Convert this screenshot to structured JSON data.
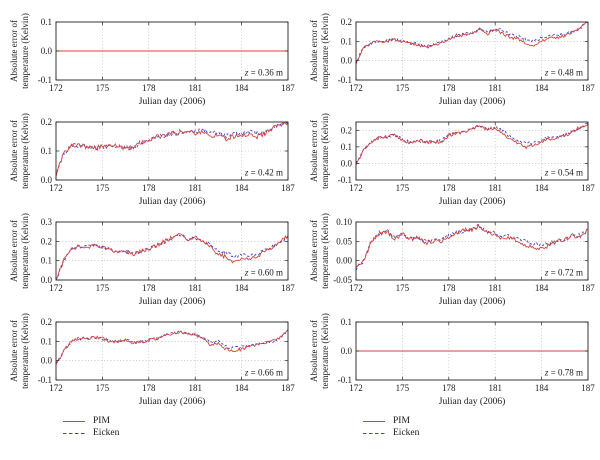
{
  "figure": {
    "background": "#ffffff",
    "xlabel": "Julian day (2006)",
    "ylabel": [
      "Absolute error of",
      "temperature (Kelvin)"
    ],
    "colors": {
      "pim": "#d8433b",
      "eicken": "#4340c6",
      "grid": "#aaaaaa",
      "axis": "#222222",
      "text": "#1a1a1a"
    },
    "legend": [
      {
        "name": "PIM",
        "style": "solid"
      },
      {
        "name": "Eicken",
        "style": "dashed"
      }
    ]
  },
  "chart_data": [
    {
      "type": "line",
      "z_label": "z = 0.36 m",
      "xlabel": "Julian day (2006)",
      "ylabel": "Absolute error of temperature (Kelvin)",
      "xlim": [
        172,
        187
      ],
      "xticks": [
        172,
        175,
        178,
        181,
        184,
        187
      ],
      "ylim": [
        -0.1,
        0.1
      ],
      "yticks": [
        -0.1,
        0.0,
        0.1
      ],
      "ytick_labels": [
        "-0.1",
        "0.0",
        "0.1"
      ],
      "x_start": 172,
      "x_step": 15,
      "noise": 0,
      "series": [
        {
          "name": "PIM",
          "values": [
            0,
            0
          ]
        },
        {
          "name": "Eicken",
          "values": [
            0,
            0
          ]
        }
      ]
    },
    {
      "type": "line",
      "z_label": "z = 0.48 m",
      "xlabel": "Julian day (2006)",
      "ylabel": "Absolute error of temperature (Kelvin)",
      "xlim": [
        172,
        187
      ],
      "xticks": [
        172,
        175,
        178,
        181,
        184,
        187
      ],
      "ylim": [
        -0.1,
        0.2
      ],
      "yticks": [
        -0.1,
        0.0,
        0.1,
        0.2
      ],
      "ytick_labels": [
        "-0.1",
        "0.0",
        "0.1",
        "0.2"
      ],
      "x_start": 172,
      "x_step": 0.5,
      "noise": 0.008,
      "series": [
        {
          "name": "PIM",
          "values": [
            -0.01,
            0.07,
            0.09,
            0.1,
            0.1,
            0.11,
            0.1,
            0.09,
            0.08,
            0.07,
            0.08,
            0.09,
            0.11,
            0.13,
            0.13,
            0.14,
            0.16,
            0.14,
            0.16,
            0.14,
            0.12,
            0.11,
            0.09,
            0.08,
            0.1,
            0.12,
            0.12,
            0.13,
            0.15,
            0.17,
            0.2
          ]
        },
        {
          "name": "Eicken",
          "values": [
            -0.01,
            0.07,
            0.09,
            0.1,
            0.105,
            0.11,
            0.1,
            0.09,
            0.085,
            0.075,
            0.08,
            0.095,
            0.115,
            0.13,
            0.135,
            0.145,
            0.165,
            0.15,
            0.165,
            0.155,
            0.135,
            0.125,
            0.11,
            0.1,
            0.115,
            0.13,
            0.13,
            0.135,
            0.15,
            0.17,
            0.2
          ]
        }
      ]
    },
    {
      "type": "line",
      "z_label": "z = 0.42 m",
      "xlabel": "Julian day (2006)",
      "ylabel": "Absolute error of temperature (Kelvin)",
      "xlim": [
        172,
        187
      ],
      "xticks": [
        172,
        175,
        178,
        181,
        184,
        187
      ],
      "ylim": [
        0.0,
        0.2
      ],
      "yticks": [
        0.0,
        0.1,
        0.2
      ],
      "ytick_labels": [
        "0.0",
        "0.1",
        "0.2"
      ],
      "x_start": 172,
      "x_step": 0.5,
      "noise": 0.008,
      "series": [
        {
          "name": "PIM",
          "values": [
            0.02,
            0.09,
            0.12,
            0.12,
            0.115,
            0.11,
            0.115,
            0.12,
            0.115,
            0.11,
            0.11,
            0.13,
            0.14,
            0.15,
            0.15,
            0.16,
            0.16,
            0.17,
            0.16,
            0.17,
            0.15,
            0.16,
            0.14,
            0.15,
            0.15,
            0.16,
            0.15,
            0.16,
            0.18,
            0.19,
            0.2
          ]
        },
        {
          "name": "Eicken",
          "values": [
            0.02,
            0.09,
            0.12,
            0.12,
            0.115,
            0.11,
            0.115,
            0.12,
            0.115,
            0.11,
            0.11,
            0.13,
            0.14,
            0.15,
            0.15,
            0.16,
            0.165,
            0.17,
            0.165,
            0.175,
            0.16,
            0.165,
            0.15,
            0.16,
            0.16,
            0.165,
            0.16,
            0.165,
            0.18,
            0.19,
            0.2
          ]
        }
      ]
    },
    {
      "type": "line",
      "z_label": "z = 0.54 m",
      "xlabel": "Julian day (2006)",
      "ylabel": "Absolute error of temperature (Kelvin)",
      "xlim": [
        172,
        187
      ],
      "xticks": [
        172,
        175,
        178,
        181,
        184,
        187
      ],
      "ylim": [
        -0.1,
        0.25
      ],
      "yticks": [
        -0.1,
        0.0,
        0.1,
        0.2
      ],
      "ytick_labels": [
        "-0.1",
        "0.0",
        "0.1",
        "0.2"
      ],
      "x_start": 172,
      "x_step": 0.5,
      "noise": 0.01,
      "series": [
        {
          "name": "PIM",
          "values": [
            0.0,
            0.08,
            0.13,
            0.155,
            0.16,
            0.17,
            0.14,
            0.12,
            0.14,
            0.13,
            0.13,
            0.13,
            0.17,
            0.18,
            0.19,
            0.21,
            0.23,
            0.2,
            0.21,
            0.18,
            0.14,
            0.12,
            0.1,
            0.11,
            0.13,
            0.15,
            0.15,
            0.17,
            0.19,
            0.22,
            0.24
          ]
        },
        {
          "name": "Eicken",
          "values": [
            0.0,
            0.08,
            0.13,
            0.155,
            0.16,
            0.17,
            0.145,
            0.125,
            0.14,
            0.13,
            0.13,
            0.135,
            0.175,
            0.185,
            0.19,
            0.21,
            0.23,
            0.205,
            0.215,
            0.195,
            0.16,
            0.14,
            0.12,
            0.125,
            0.14,
            0.16,
            0.155,
            0.17,
            0.19,
            0.22,
            0.24
          ]
        }
      ]
    },
    {
      "type": "line",
      "z_label": "z = 0.60 m",
      "xlabel": "Julian day (2006)",
      "ylabel": "Absolute error of temperature (Kelvin)",
      "xlim": [
        172,
        187
      ],
      "xticks": [
        172,
        175,
        178,
        181,
        184,
        187
      ],
      "ylim": [
        0.0,
        0.3
      ],
      "yticks": [
        0.0,
        0.1,
        0.2,
        0.3
      ],
      "ytick_labels": [
        "0.0",
        "0.1",
        "0.2",
        "0.3"
      ],
      "x_start": 172,
      "x_step": 0.5,
      "noise": 0.01,
      "series": [
        {
          "name": "PIM",
          "values": [
            0.0,
            0.1,
            0.16,
            0.175,
            0.17,
            0.18,
            0.17,
            0.155,
            0.14,
            0.15,
            0.13,
            0.15,
            0.16,
            0.18,
            0.2,
            0.22,
            0.24,
            0.21,
            0.22,
            0.2,
            0.17,
            0.13,
            0.12,
            0.09,
            0.11,
            0.11,
            0.12,
            0.15,
            0.17,
            0.2,
            0.23
          ]
        },
        {
          "name": "Eicken",
          "values": [
            0.0,
            0.1,
            0.16,
            0.175,
            0.17,
            0.18,
            0.17,
            0.155,
            0.145,
            0.15,
            0.135,
            0.15,
            0.16,
            0.18,
            0.195,
            0.215,
            0.23,
            0.21,
            0.22,
            0.205,
            0.18,
            0.15,
            0.14,
            0.12,
            0.13,
            0.13,
            0.13,
            0.155,
            0.17,
            0.2,
            0.225
          ]
        }
      ]
    },
    {
      "type": "line",
      "z_label": "z = 0.72 m",
      "xlabel": "Julian day (2006)",
      "ylabel": "Absolute error of temperature (Kelvin)",
      "xlim": [
        172,
        187
      ],
      "xticks": [
        172,
        175,
        178,
        181,
        184,
        187
      ],
      "ylim": [
        -0.05,
        0.1
      ],
      "yticks": [
        -0.05,
        0.0,
        0.05,
        0.1
      ],
      "ytick_labels": [
        "-0.05",
        "0.00",
        "0.05",
        "0.10"
      ],
      "x_start": 172,
      "x_step": 0.5,
      "noise": 0.005,
      "series": [
        {
          "name": "PIM",
          "values": [
            -0.02,
            0.0,
            0.05,
            0.07,
            0.075,
            0.055,
            0.07,
            0.055,
            0.06,
            0.045,
            0.05,
            0.05,
            0.06,
            0.07,
            0.08,
            0.08,
            0.09,
            0.07,
            0.07,
            0.055,
            0.06,
            0.045,
            0.04,
            0.035,
            0.03,
            0.04,
            0.05,
            0.055,
            0.065,
            0.06,
            0.08
          ]
        },
        {
          "name": "Eicken",
          "values": [
            -0.02,
            0.0,
            0.05,
            0.072,
            0.078,
            0.06,
            0.07,
            0.058,
            0.06,
            0.05,
            0.05,
            0.055,
            0.065,
            0.075,
            0.075,
            0.085,
            0.09,
            0.075,
            0.072,
            0.06,
            0.065,
            0.055,
            0.05,
            0.045,
            0.04,
            0.045,
            0.05,
            0.055,
            0.065,
            0.065,
            0.08
          ]
        }
      ]
    },
    {
      "type": "line",
      "z_label": "z = 0.66 m",
      "xlabel": "Julian day (2006)",
      "ylabel": "Absolute error of temperature (Kelvin)",
      "xlim": [
        172,
        187
      ],
      "xticks": [
        172,
        175,
        178,
        181,
        184,
        187
      ],
      "ylim": [
        -0.1,
        0.2
      ],
      "yticks": [
        -0.1,
        0.0,
        0.1,
        0.2
      ],
      "ytick_labels": [
        "-0.1",
        "0.0",
        "0.1",
        "0.2"
      ],
      "x_start": 172,
      "x_step": 0.5,
      "noise": 0.008,
      "series": [
        {
          "name": "PIM",
          "values": [
            -0.02,
            0.05,
            0.1,
            0.115,
            0.115,
            0.12,
            0.115,
            0.1,
            0.1,
            0.11,
            0.09,
            0.095,
            0.105,
            0.11,
            0.13,
            0.14,
            0.15,
            0.14,
            0.13,
            0.12,
            0.08,
            0.09,
            0.06,
            0.05,
            0.06,
            0.07,
            0.08,
            0.09,
            0.1,
            0.12,
            0.16
          ]
        },
        {
          "name": "Eicken",
          "values": [
            -0.02,
            0.05,
            0.1,
            0.115,
            0.115,
            0.12,
            0.115,
            0.1,
            0.1,
            0.11,
            0.09,
            0.1,
            0.11,
            0.115,
            0.13,
            0.14,
            0.148,
            0.142,
            0.135,
            0.125,
            0.095,
            0.1,
            0.075,
            0.065,
            0.07,
            0.078,
            0.082,
            0.09,
            0.1,
            0.12,
            0.16
          ]
        }
      ]
    },
    {
      "type": "line",
      "z_label": "z = 0.78 m",
      "xlabel": "Julian day (2006)",
      "ylabel": "Absolute error of temperature (Kelvin)",
      "xlim": [
        172,
        187
      ],
      "xticks": [
        172,
        175,
        178,
        181,
        184,
        187
      ],
      "ylim": [
        -0.1,
        0.1
      ],
      "yticks": [
        -0.1,
        0.0,
        0.1
      ],
      "ytick_labels": [
        "-0.1",
        "0.0",
        "0.1"
      ],
      "x_start": 172,
      "x_step": 15,
      "noise": 0,
      "series": [
        {
          "name": "PIM",
          "values": [
            0,
            0
          ]
        },
        {
          "name": "Eicken",
          "values": [
            0,
            0
          ]
        }
      ]
    }
  ]
}
